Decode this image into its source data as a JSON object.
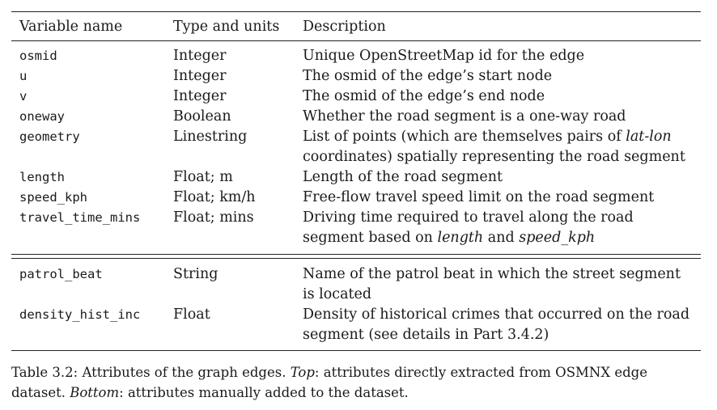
{
  "table": {
    "headers": [
      "Variable name",
      "Type and units",
      "Description"
    ],
    "top_rows": [
      {
        "name": "osmid",
        "type": "Integer",
        "desc": "Unique OpenStreetMap id for the edge"
      },
      {
        "name": "u",
        "type": "Integer",
        "desc": "The osmid of the edge’s start node"
      },
      {
        "name": "v",
        "type": "Integer",
        "desc": "The osmid of the edge’s end node"
      },
      {
        "name": "oneway",
        "type": "Boolean",
        "desc": "Whether the road segment is a one-way road"
      },
      {
        "name": "geometry",
        "type": "Linestring",
        "desc_a": "List of points (which are themselves pairs of ",
        "desc_em": "lat-lon",
        "desc_b": " coordinates) spatially representing the road segment"
      },
      {
        "name": "length",
        "type": "Float; m",
        "desc": "Length of the road segment"
      },
      {
        "name": "speed_kph",
        "type": "Float; km/h",
        "desc": "Free-flow travel speed limit on the road segment"
      },
      {
        "name": "travel_time_mins",
        "type": "Float; mins",
        "desc_a": "Driving time required to travel along the road segment based on ",
        "desc_em1": "length",
        "desc_mid": " and ",
        "desc_em2": "speed_kph"
      }
    ],
    "bottom_rows": [
      {
        "name": "patrol_beat",
        "type": "String",
        "desc": "Name of the patrol beat in which the street segment is located"
      },
      {
        "name": "density_hist_inc",
        "type": "Float",
        "desc": "Density of historical crimes that occurred on the road segment (see details in Part 3.4.2)"
      }
    ]
  },
  "caption": {
    "label": "Table 3.2: Attributes of the graph edges. ",
    "top_label": "Top",
    "top_text": ": attributes directly extracted from OSMNX edge dataset. ",
    "bottom_label": "Bottom",
    "bottom_text": ": attributes manually added to the dataset."
  }
}
